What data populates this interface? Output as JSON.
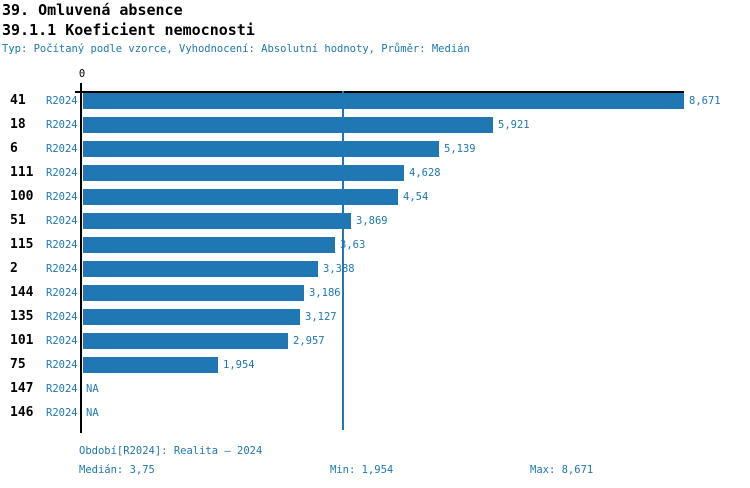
{
  "title": "39. Omluvená absence",
  "subtitle": "39.1.1 Koeficient nemocnosti",
  "meta_line": "Typ: Počítaný podle vzorce, Vyhodnocení: Absolutní hodnoty, Průměr: Medián",
  "colors": {
    "bar": "#1f77b4",
    "blue_text": "#1f77b4",
    "axis": "#000000",
    "background": "#ffffff"
  },
  "chart_data": {
    "type": "bar",
    "orientation": "horizontal",
    "title": "39.1.1 Koeficient nemocnosti",
    "series_label": "R2024",
    "categories": [
      "41",
      "18",
      "6",
      "111",
      "100",
      "51",
      "115",
      "2",
      "144",
      "135",
      "101",
      "75",
      "147",
      "146"
    ],
    "values": [
      8.671,
      5.921,
      5.139,
      4.628,
      4.54,
      3.869,
      3.63,
      3.388,
      3.186,
      3.127,
      2.957,
      1.954,
      null,
      null
    ],
    "value_labels": [
      "8,671",
      "5,921",
      "5,139",
      "4,628",
      "4,54",
      "3,869",
      "3,63",
      "3,388",
      "3,186",
      "3,127",
      "2,957",
      "1,954",
      "NA",
      "NA"
    ],
    "na_text": "NA",
    "xlim": [
      0,
      8.671
    ],
    "zero_tick_label": "0",
    "median_value": 3.75,
    "grid": "single median gridline",
    "legend_position": "none"
  },
  "footer": {
    "period_line": "Období[R2024]: Realita – 2024",
    "median_label": "Medián: 3,75",
    "min_label": "Min: 1,954",
    "max_label": "Max: 8,671"
  }
}
